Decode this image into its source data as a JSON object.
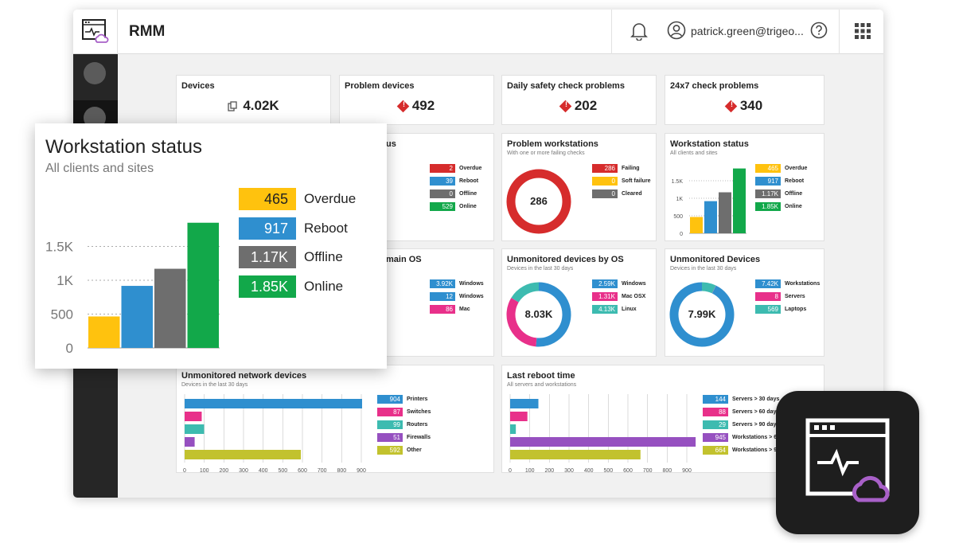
{
  "app": {
    "title": "RMM",
    "user_email": "patrick.green@trigeo..."
  },
  "icons": {
    "logo": "rmm-logo-icon",
    "bell": "bell-icon",
    "user": "user-circle-icon",
    "help": "help-icon",
    "apps": "apps-grid-icon"
  },
  "colors": {
    "red": "#d62c2c",
    "blue": "#2f8fcf",
    "grey": "#6e6e6e",
    "green": "#12a84a",
    "yellow": "#ffc20e",
    "pink": "#e8308a",
    "teal": "#3dbbb0",
    "purple": "#9650c0",
    "olive": "#c2c22e",
    "cloud": "#a860c8"
  },
  "kpis": [
    {
      "label": "Devices",
      "value": "4.02K"
    },
    {
      "label": "Problem devices",
      "value": "492"
    },
    {
      "label": "Daily safety check problems",
      "value": "202"
    },
    {
      "label": "24x7 check problems",
      "value": "340"
    }
  ],
  "server_status_partial": {
    "title_fragment": "us",
    "legend": [
      {
        "value": "2",
        "label": "Overdue"
      },
      {
        "value": "39",
        "label": "Reboot"
      },
      {
        "value": "0",
        "label": "Offline"
      },
      {
        "value": "529",
        "label": "Online"
      }
    ]
  },
  "problem_workstations": {
    "title": "Problem workstations",
    "subtitle": "With one or more failing checks",
    "center": "286",
    "legend": [
      {
        "value": "286",
        "label": "Failing"
      },
      {
        "value": "0",
        "label": "Soft failure"
      },
      {
        "value": "0",
        "label": "Cleared"
      }
    ]
  },
  "workstation_status": {
    "title": "Workstation status",
    "subtitle": "All clients and sites",
    "legend": [
      {
        "value": "465",
        "label": "Overdue"
      },
      {
        "value": "917",
        "label": "Reboot"
      },
      {
        "value": "1.17K",
        "label": "Offline"
      },
      {
        "value": "1.85K",
        "label": "Online"
      }
    ],
    "axis": [
      "1.5K",
      "1K",
      "500",
      "0"
    ]
  },
  "domain_os_partial": {
    "title_fragment": "main OS",
    "legend": [
      {
        "value": "3.92K",
        "label": "Windows"
      },
      {
        "value": "12",
        "label": "Windows"
      },
      {
        "value": "86",
        "label": "Mac"
      }
    ]
  },
  "unmonitored_os": {
    "title": "Unmonitored devices by OS",
    "subtitle": "Devices in the last 30 days",
    "center": "8.03K",
    "legend": [
      {
        "value": "2.59K",
        "label": "Windows"
      },
      {
        "value": "1.31K",
        "label": "Mac OSX"
      },
      {
        "value": "4.13K",
        "label": "Linux"
      }
    ]
  },
  "unmonitored_devices": {
    "title": "Unmonitored Devices",
    "subtitle": "Devices in the last 30 days",
    "center": "7.99K",
    "legend": [
      {
        "value": "7.42K",
        "label": "Workstations"
      },
      {
        "value": "8",
        "label": "Servers"
      },
      {
        "value": "569",
        "label": "Laptops"
      }
    ]
  },
  "unmonitored_network": {
    "title": "Unmonitored network devices",
    "subtitle": "Devices in the last 30 days",
    "legend": [
      {
        "value": "904",
        "label": "Printers"
      },
      {
        "value": "87",
        "label": "Switches"
      },
      {
        "value": "99",
        "label": "Routers"
      },
      {
        "value": "51",
        "label": "Firewalls"
      },
      {
        "value": "592",
        "label": "Other"
      }
    ],
    "axis": [
      "0",
      "100",
      "200",
      "300",
      "400",
      "500",
      "600",
      "700",
      "800",
      "900"
    ]
  },
  "last_reboot": {
    "title": "Last reboot time",
    "subtitle": "All servers and workstations",
    "legend": [
      {
        "value": "144",
        "label": "Servers > 30 days"
      },
      {
        "value": "88",
        "label": "Servers > 60 days"
      },
      {
        "value": "29",
        "label": "Servers > 90 days"
      },
      {
        "value": "945",
        "label": "Workstations > 6"
      },
      {
        "value": "664",
        "label": "Workstations > 9"
      }
    ],
    "axis": [
      "0",
      "100",
      "200",
      "300",
      "400",
      "500",
      "600",
      "700",
      "800",
      "900"
    ]
  },
  "popout": {
    "title": "Workstation status",
    "subtitle": "All clients and sites",
    "legend": [
      {
        "value": "465",
        "label": "Overdue"
      },
      {
        "value": "917",
        "label": "Reboot"
      },
      {
        "value": "1.17K",
        "label": "Offline"
      },
      {
        "value": "1.85K",
        "label": "Online"
      }
    ],
    "axis": [
      "1.5K",
      "1K",
      "500",
      "0"
    ]
  },
  "chart_data": [
    {
      "type": "bar",
      "title": "Workstation status",
      "subtitle": "All clients and sites",
      "categories": [
        "Overdue",
        "Reboot",
        "Offline",
        "Online"
      ],
      "values": [
        465,
        917,
        1170,
        1850
      ],
      "ylim": [
        0,
        2000
      ]
    },
    {
      "type": "bar",
      "categories": [
        "Overdue",
        "Reboot",
        "Offline",
        "Online"
      ],
      "values": [
        2,
        39,
        0,
        529
      ],
      "ylim": [
        0,
        600
      ]
    },
    {
      "type": "pie",
      "title": "Problem workstations",
      "categories": [
        "Failing",
        "Soft failure",
        "Cleared"
      ],
      "values": [
        286,
        0,
        0
      ]
    },
    {
      "type": "pie",
      "categories": [
        "Windows",
        "Windows",
        "Mac"
      ],
      "values": [
        3920,
        12,
        86
      ]
    },
    {
      "type": "pie",
      "title": "Unmonitored devices by OS",
      "categories": [
        "Windows",
        "Mac OSX",
        "Linux"
      ],
      "values": [
        2590,
        1310,
        4130
      ]
    },
    {
      "type": "pie",
      "title": "Unmonitored Devices",
      "categories": [
        "Workstations",
        "Servers",
        "Laptops"
      ],
      "values": [
        7420,
        8,
        569
      ]
    },
    {
      "type": "bar",
      "title": "Unmonitored network devices",
      "categories": [
        "Printers",
        "Switches",
        "Routers",
        "Firewalls",
        "Other"
      ],
      "values": [
        904,
        87,
        99,
        51,
        592
      ],
      "xlim": [
        0,
        900
      ]
    },
    {
      "type": "bar",
      "title": "Last reboot time",
      "categories": [
        "Servers > 30 days",
        "Servers > 60 days",
        "Servers > 90 days",
        "Workstations > 6",
        "Workstations > 9"
      ],
      "values": [
        144,
        88,
        29,
        945,
        664
      ],
      "xlim": [
        0,
        900
      ]
    }
  ]
}
